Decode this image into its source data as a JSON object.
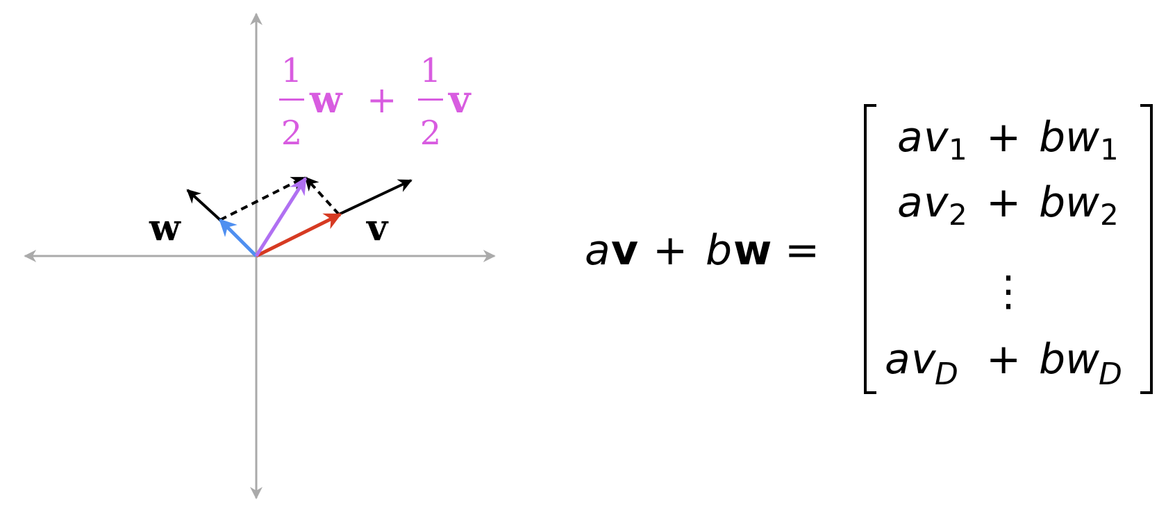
{
  "diagram": {
    "colors": {
      "axis": "#aaaaaa",
      "vector_v": "#000000",
      "vector_w": "#000000",
      "half_v": "#d63a22",
      "half_w": "#4f8ff0",
      "midpoint_vector": "#b070f2",
      "dashed_guides": "#000000",
      "combination_label": "#d85ce0"
    },
    "labels": {
      "w": "w",
      "v": "v",
      "half_numerator": "1",
      "half_denominator": "2",
      "plus": "+"
    }
  },
  "equation": {
    "lhs_a": "a",
    "lhs_v": "v",
    "plus": "+",
    "lhs_b": "b",
    "lhs_w": "w",
    "equals": "=",
    "rows": [
      {
        "a": "a",
        "v": "v",
        "v_sub": "1",
        "plus": "+",
        "b": "b",
        "w": "w",
        "w_sub": "1"
      },
      {
        "a": "a",
        "v": "v",
        "v_sub": "2",
        "plus": "+",
        "b": "b",
        "w": "w",
        "w_sub": "2"
      },
      {
        "a": "a",
        "v": "v",
        "v_sub": "D",
        "plus": "+",
        "b": "b",
        "w": "w",
        "w_sub": "D"
      }
    ],
    "vdots": "⋮"
  }
}
